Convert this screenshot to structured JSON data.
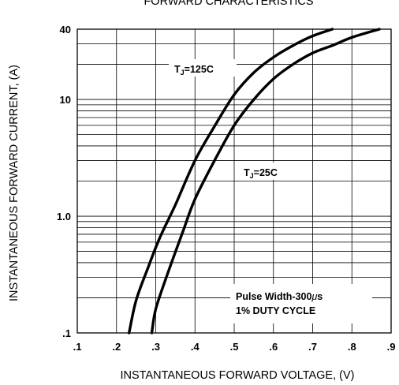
{
  "chart_data": {
    "type": "line",
    "title": "FORWARD CHARACTERISTICS",
    "xlabel": "INSTANTANEOUS FORWARD VOLTAGE, (V)",
    "ylabel": "INSTANTANEOUS FORWARD CURRENT, (A)",
    "x_scale": "linear",
    "y_scale": "log",
    "xlim": [
      0.1,
      0.9
    ],
    "ylim": [
      0.1,
      40
    ],
    "x_ticks": [
      ".1",
      ".2",
      ".3",
      ".4",
      ".5",
      ".6",
      ".7",
      ".8",
      ".9"
    ],
    "y_ticks": [
      {
        "value": 40,
        "label": "40"
      },
      {
        "value": 10,
        "label": "10"
      },
      {
        "value": 1,
        "label": "1.0"
      },
      {
        "value": 0.1,
        "label": ".1"
      }
    ],
    "grid": true,
    "series": [
      {
        "name": "TJ=125C",
        "label_main": "T",
        "label_sub": "J",
        "label_rest": "=125",
        "label_unit": "C",
        "x": [
          0.232,
          0.25,
          0.28,
          0.31,
          0.35,
          0.4,
          0.45,
          0.5,
          0.55,
          0.6,
          0.65,
          0.7,
          0.75
        ],
        "y": [
          0.1,
          0.19,
          0.36,
          0.65,
          1.25,
          3.0,
          5.9,
          11,
          17,
          23,
          29,
          35,
          40
        ]
      },
      {
        "name": "TJ=25C",
        "label_main": "T",
        "label_sub": "J",
        "label_rest": "=25",
        "label_unit": "C",
        "x": [
          0.29,
          0.3,
          0.33,
          0.37,
          0.4,
          0.45,
          0.5,
          0.55,
          0.6,
          0.65,
          0.7,
          0.75,
          0.8,
          0.87
        ],
        "y": [
          0.1,
          0.16,
          0.32,
          0.75,
          1.4,
          3.0,
          6.0,
          10,
          15,
          20,
          25,
          29,
          34,
          40
        ]
      }
    ],
    "annotations": {
      "pulse_pre": "Pulse Width-300",
      "pulse_mu": "μ",
      "pulse_post": "s",
      "duty": "1% DUTY CYCLE"
    }
  }
}
